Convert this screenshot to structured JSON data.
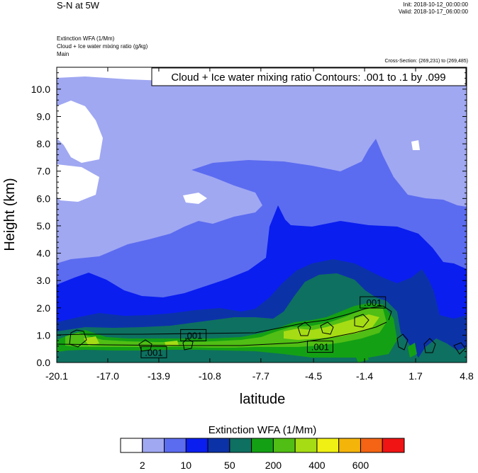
{
  "header": {
    "title": "S-N at 5W",
    "init": "Init: 2018-10-12_00:00:00",
    "valid": "Valid: 2018-10-17_06:00:00",
    "field1": "Extinction WFA   (1/Mm)",
    "field2": "Cloud + Ice water mixing ratio   (g/kg)",
    "field3": "Main",
    "cross_section": "Cross-Section: (269,231) to (269,485)"
  },
  "chart_data": {
    "type": "heatmap",
    "title": "Cloud + Ice water mixing ratio Contours: .001 to .1 by .099",
    "xlabel": "latitude",
    "ylabel": "Height (km)",
    "xlim": [
      -20.1,
      4.8
    ],
    "ylim": [
      0.0,
      10.8
    ],
    "x_ticks": [
      "-20.1",
      "-17.0",
      "-13.9",
      "-10.8",
      "-7.7",
      "-4.5",
      "-1.4",
      "1.7",
      "4.8"
    ],
    "y_ticks": [
      "0.0",
      "1.0",
      "2.0",
      "3.0",
      "4.0",
      "5.0",
      "6.0",
      "7.0",
      "8.0",
      "9.0",
      "10.0"
    ],
    "contour_labels": [
      {
        "text": ".001",
        "x": -14.2,
        "y": 0.38
      },
      {
        "text": ".001",
        "x": -11.8,
        "y": 1.0
      },
      {
        "text": ".001",
        "x": -4.1,
        "y": 0.58
      },
      {
        "text": ".001",
        "x": -0.9,
        "y": 2.2
      }
    ],
    "colorbar": {
      "title": "Extinction WFA  (1/Mm)",
      "colors": [
        "#ffffff",
        "#a0a8f2",
        "#5c6cf0",
        "#0a1ef0",
        "#0c32a8",
        "#0e7060",
        "#14a014",
        "#50be14",
        "#a6dc14",
        "#f0f014",
        "#f4b40a",
        "#f46414",
        "#f01414"
      ],
      "tick_labels": [
        "2",
        "10",
        "50",
        "200",
        "400",
        "600"
      ]
    }
  }
}
